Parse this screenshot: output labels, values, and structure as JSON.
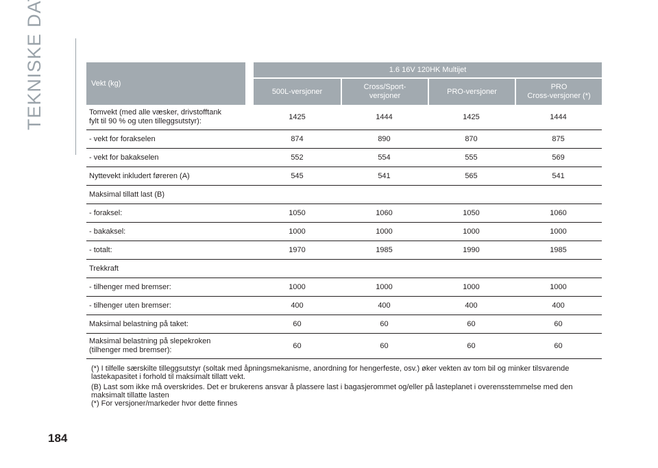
{
  "page": {
    "section_title": "TEKNISKE DATA",
    "page_number": "184"
  },
  "table": {
    "corner_label": "Vekt (kg)",
    "engine": "1.6 16V 120HK Multijet",
    "columns": [
      "500L-versjoner",
      "Cross/Sport-\nversjoner",
      "PRO-versjoner",
      "PRO\nCross-versjoner (*)"
    ],
    "rows": [
      {
        "label": "Tomvekt (med alle væsker, drivstofftank\nfylt til 90 % og uten tilleggsutstyr):",
        "values": [
          "1425",
          "1444",
          "1425",
          "1444"
        ]
      },
      {
        "label": "- vekt for forakselen",
        "values": [
          "874",
          "890",
          "870",
          "875"
        ]
      },
      {
        "label": "- vekt for bakakselen",
        "values": [
          "552",
          "554",
          "555",
          "569"
        ]
      },
      {
        "label": "Nyttevekt inkludert føreren (A)",
        "values": [
          "545",
          "541",
          "565",
          "541"
        ]
      },
      {
        "label": "Maksimal tillatt last (B)",
        "values": [
          "",
          "",
          "",
          ""
        ]
      },
      {
        "label": "- foraksel:",
        "values": [
          "1050",
          "1060",
          "1050",
          "1060"
        ]
      },
      {
        "label": "- bakaksel:",
        "values": [
          "1000",
          "1000",
          "1000",
          "1000"
        ]
      },
      {
        "label": "- totalt:",
        "values": [
          "1970",
          "1985",
          "1990",
          "1985"
        ]
      },
      {
        "label": "Trekkraft",
        "values": [
          "",
          "",
          "",
          ""
        ]
      },
      {
        "label": "- tilhenger med bremser:",
        "values": [
          "1000",
          "1000",
          "1000",
          "1000"
        ]
      },
      {
        "label": "- tilhenger uten bremser:",
        "values": [
          "400",
          "400",
          "400",
          "400"
        ]
      },
      {
        "label": "Maksimal belastning på taket:",
        "values": [
          "60",
          "60",
          "60",
          "60"
        ]
      },
      {
        "label": "Maksimal belastning på slepekroken\n(tilhenger med bremser):",
        "values": [
          "60",
          "60",
          "60",
          "60"
        ]
      }
    ]
  },
  "notes": {
    "a": "(*) I tilfelle særskilte tilleggsutstyr (soltak med åpningsmekanisme, anordning for hengerfeste, osv.) øker vekten av tom bil og minker tilsvarende lastekapasitet i forhold til maksimalt tillatt vekt.",
    "b": "(B) Last som ikke må overskrides. Det er brukerens ansvar å plassere last i bagasjerommet og/eller på lasteplanet i overensstemmelse med den maksimalt tillatte lasten",
    "c": "(*) For versjoner/markeder hvor dette finnes"
  }
}
